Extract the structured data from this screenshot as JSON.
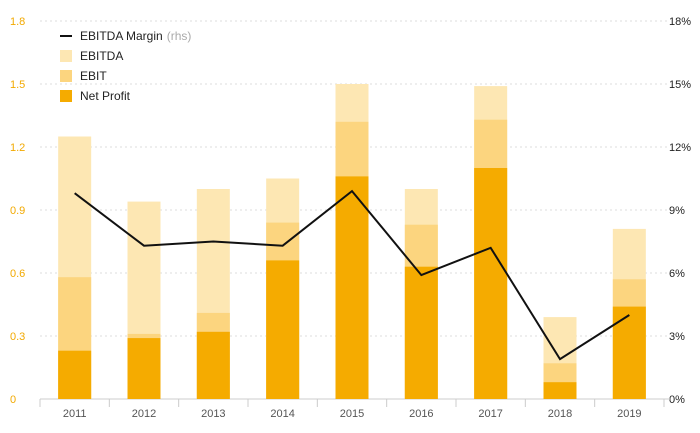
{
  "chart_data": {
    "type": "bar",
    "stacked": false,
    "categories": [
      "2011",
      "2012",
      "2013",
      "2014",
      "2015",
      "2016",
      "2017",
      "2018",
      "2019"
    ],
    "series": [
      {
        "name": "EBITDA",
        "kind": "bar",
        "axis": "left",
        "color": "#fde7b3",
        "values": [
          1.25,
          0.94,
          1.0,
          1.05,
          1.5,
          1.0,
          1.49,
          0.39,
          0.81
        ]
      },
      {
        "name": "EBIT",
        "kind": "bar",
        "axis": "left",
        "color": "#fcd57f",
        "values": [
          0.58,
          0.31,
          0.41,
          0.84,
          1.32,
          0.83,
          1.33,
          0.17,
          0.57
        ]
      },
      {
        "name": "Net Profit",
        "kind": "bar",
        "axis": "left",
        "color": "#f5ab00",
        "values": [
          0.23,
          0.29,
          0.32,
          0.66,
          1.06,
          0.63,
          1.1,
          0.08,
          0.44
        ]
      },
      {
        "name": "EBITDA Margin",
        "kind": "line",
        "axis": "right",
        "color": "#111111",
        "values": [
          9.8,
          7.3,
          7.5,
          7.3,
          9.9,
          5.9,
          7.2,
          1.9,
          4.0
        ]
      }
    ],
    "left_axis": {
      "ylim": [
        0,
        1.8
      ],
      "ticks": [
        "0",
        "0.3",
        "0.6",
        "0.9",
        "1.2",
        "1.5",
        "1.8"
      ]
    },
    "right_axis": {
      "ylim": [
        0,
        18
      ],
      "ticks": [
        "0%",
        "3%",
        "6%",
        "9%",
        "12%",
        "15%",
        "18%"
      ]
    },
    "grid": true,
    "legend_position": "top-left"
  },
  "legend": {
    "line_label": "EBITDA Margin",
    "line_suffix": "(rhs)",
    "items": [
      "EBITDA",
      "EBIT",
      "Net Profit"
    ]
  },
  "colors": {
    "accent": "#f2a900",
    "ebitda": "#fde7b3",
    "ebit": "#fcd57f",
    "net_profit": "#f5ab00",
    "margin_line": "#111111"
  }
}
